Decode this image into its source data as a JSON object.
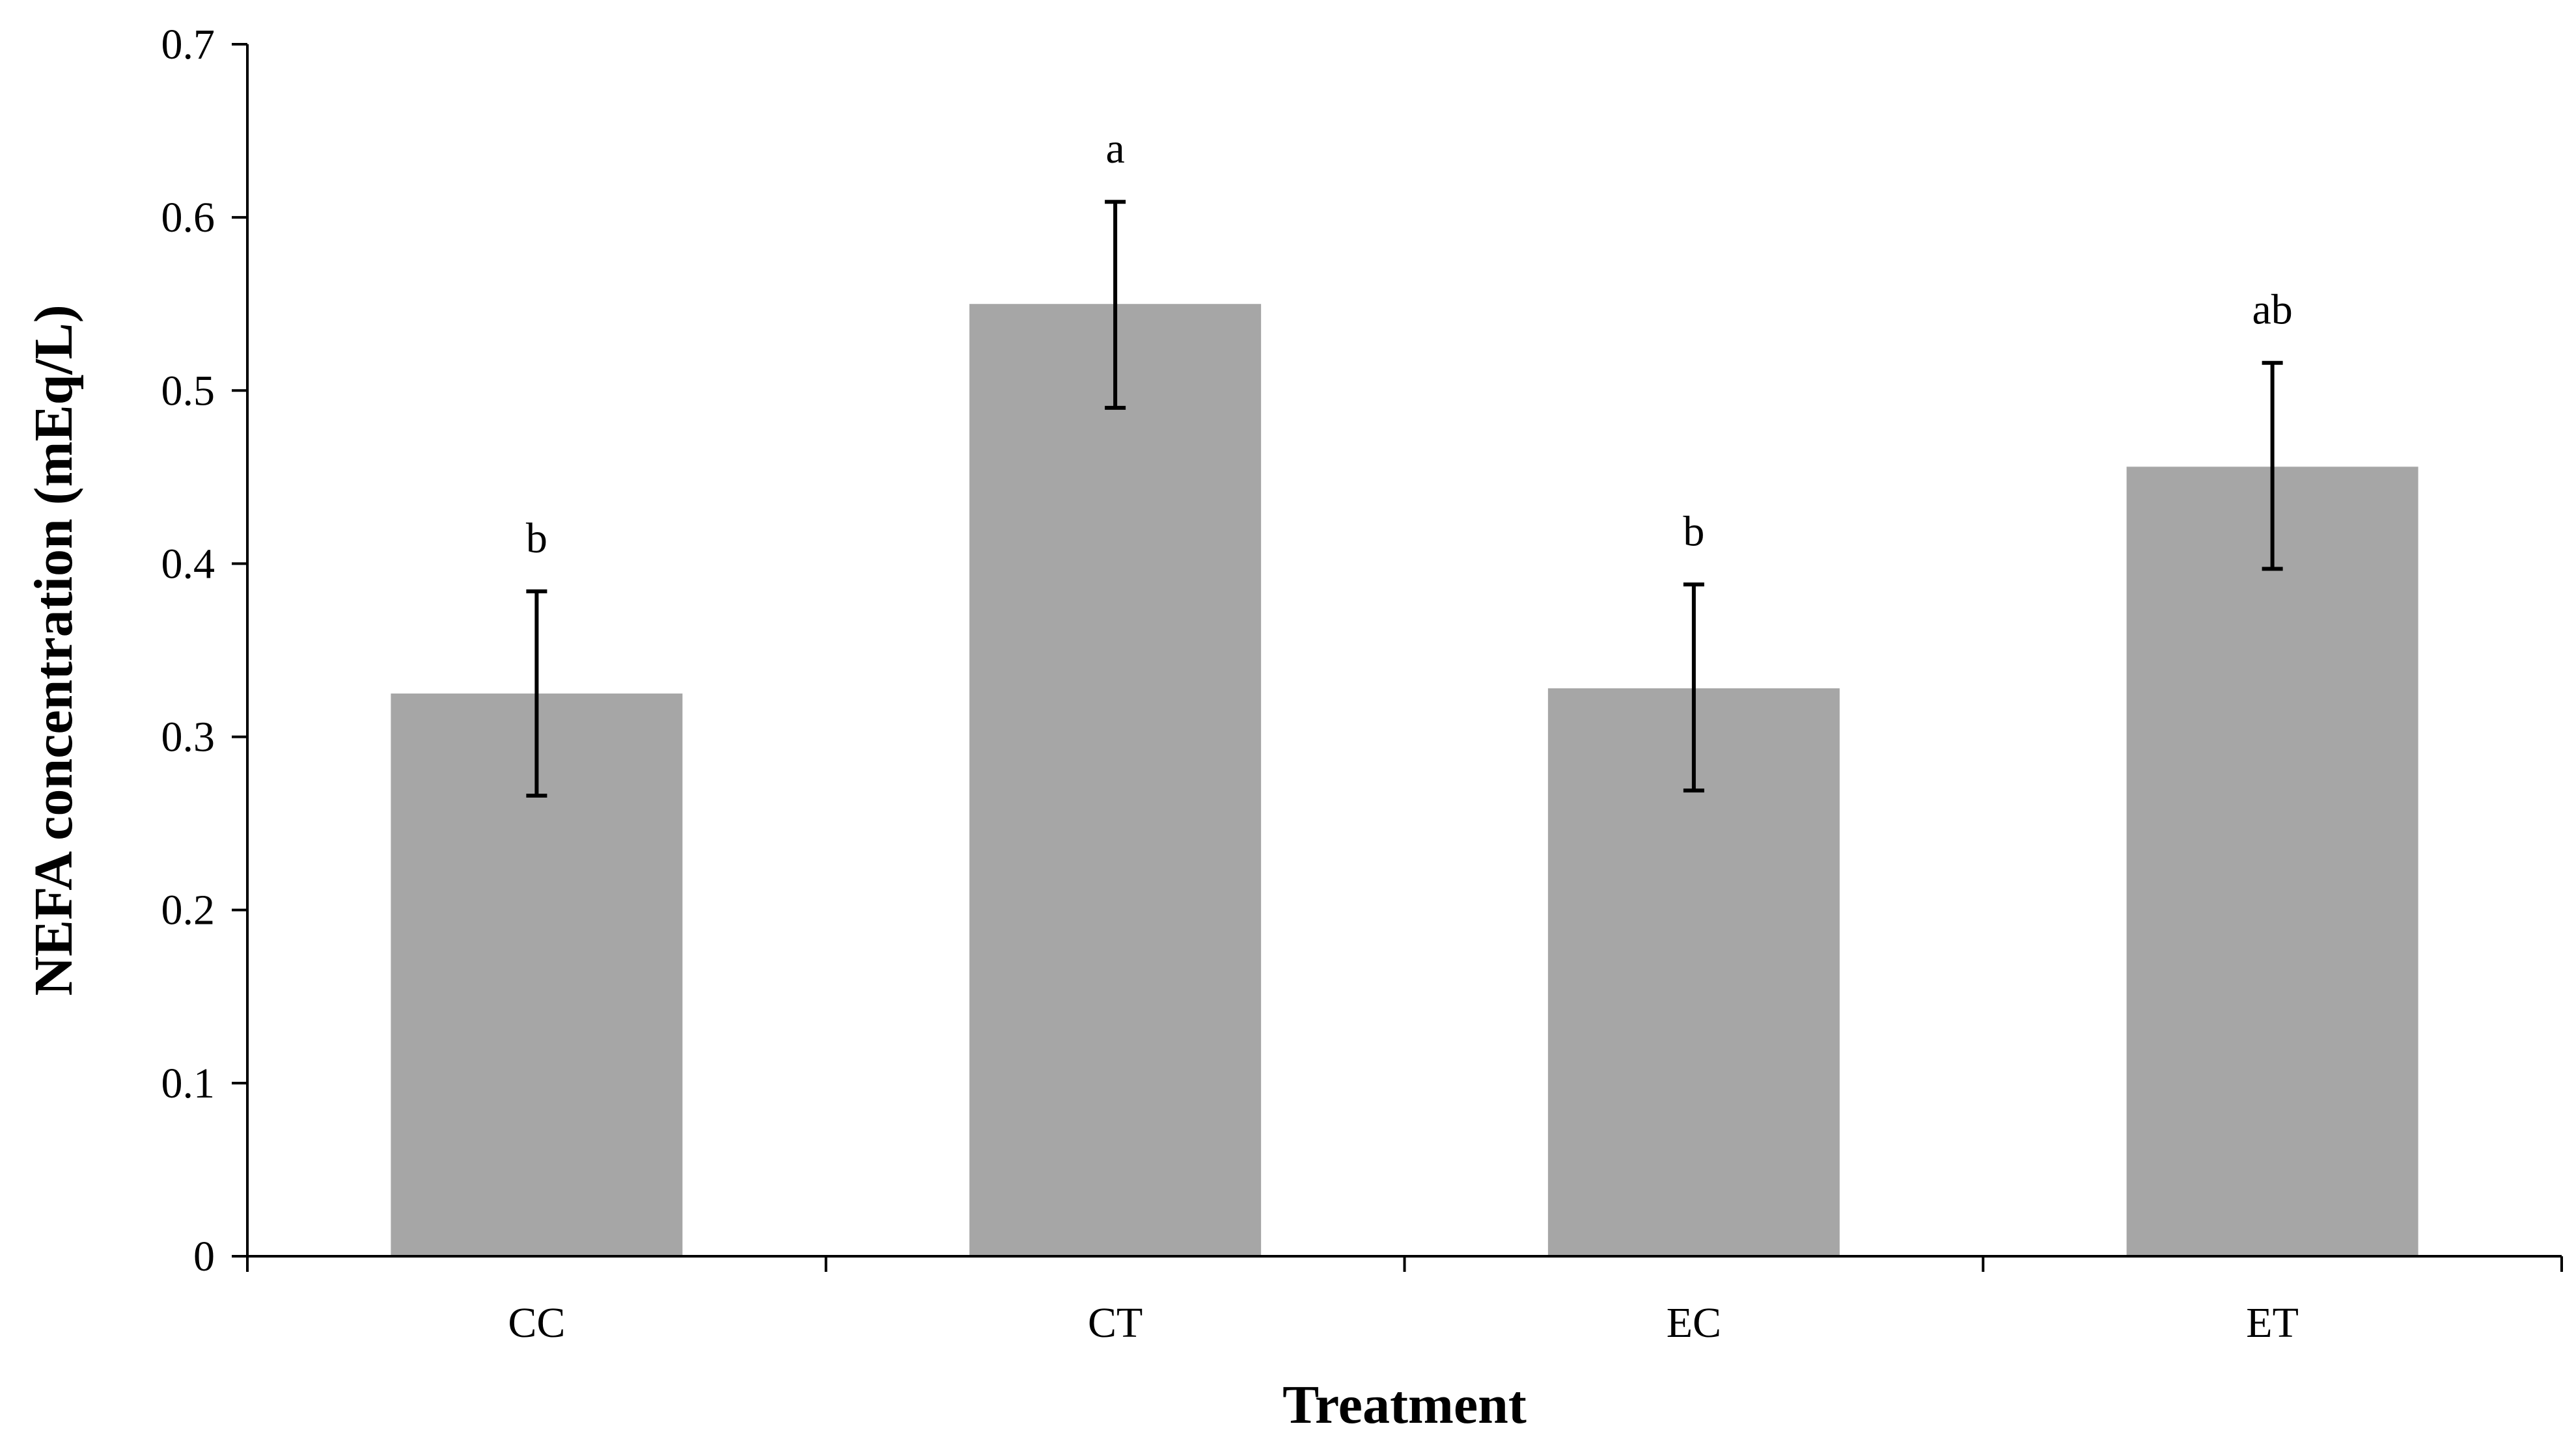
{
  "chart_data": {
    "type": "bar",
    "title": "",
    "xlabel": "Treatment",
    "ylabel": "NEFA concentration  (mEq/L)",
    "categories": [
      "CC",
      "CT",
      "EC",
      "ET"
    ],
    "values": [
      0.325,
      0.55,
      0.328,
      0.456
    ],
    "error_upper": [
      0.384,
      0.609,
      0.388,
      0.516
    ],
    "error_lower": [
      0.266,
      0.49,
      0.269,
      0.397
    ],
    "significance_labels": [
      "b",
      "a",
      "b",
      "ab"
    ],
    "ylim": [
      0,
      0.7
    ],
    "yticks": [
      0,
      0.1,
      0.2,
      0.3,
      0.4,
      0.5,
      0.6,
      0.7
    ],
    "ytick_labels": [
      "0",
      "0.1",
      "0.2",
      "0.3",
      "0.4",
      "0.5",
      "0.6",
      "0.7"
    ],
    "grid": false,
    "legend": "none",
    "colors": {
      "bar": "#a6a6a6",
      "axis": "#000000"
    }
  }
}
